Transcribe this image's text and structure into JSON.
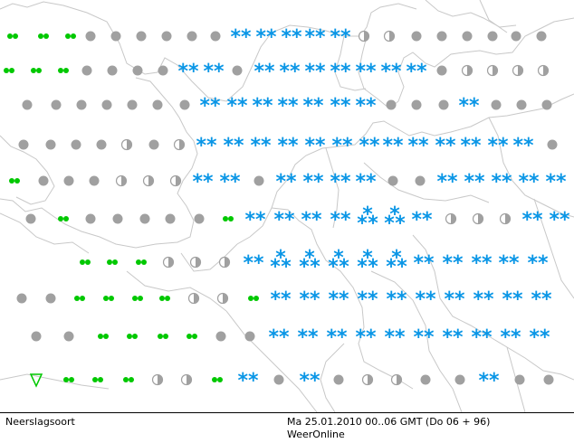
{
  "footer": {
    "product": "Neerslagsoort",
    "validity": "Ma 25.01.2010 00..06 GMT (Do 06 + 96)",
    "source": "WeerOnline"
  },
  "colors": {
    "snow": "#0a96e6",
    "rain": "#00c800",
    "cloud": "#a0a0a0",
    "coastline": "#c8c8c8",
    "background": "#ffffff"
  },
  "legend_symbols": {
    "snow": "snow-asterisk-icon",
    "snow_heavy": "snow-triangle-cluster-icon",
    "rain": "rain-double-dot-icon",
    "shower": "shower-triangle-icon",
    "dry": "gray-dot-icon",
    "mixed": "half-filled-circle-icon"
  },
  "grid": {
    "rows": [
      "RR R R  .  .  .  .  .  . SSSSSSSSSSS . . .   .   .   .",
      " R  RR  .  .  .  .  .  SSSS .SSSSSSSSSSSSSS . o o o .",
      "     .  .  .  .  .  .  SSSSSSSSSSSSSSSS . . SS . . o",
      " .  .  .  .  o  .  . SSSSSSSSSSSSSSSSSSSSSSSSSSSSS .",
      "R  .  .  .  o  o  o  SS . SSSSSSSS . . SSSSSSSSSSSS",
      " .  RR  .  .  .  .  .  RR SSSSSSHHHS . o . SSSSSS",
      "RR RR RR . . o  SSHHHHHHSSSSSSSSSSSSSS",
      "RR RR RR RR o o RR SSSSSSSSSSSSSSSSSS"
    ]
  }
}
